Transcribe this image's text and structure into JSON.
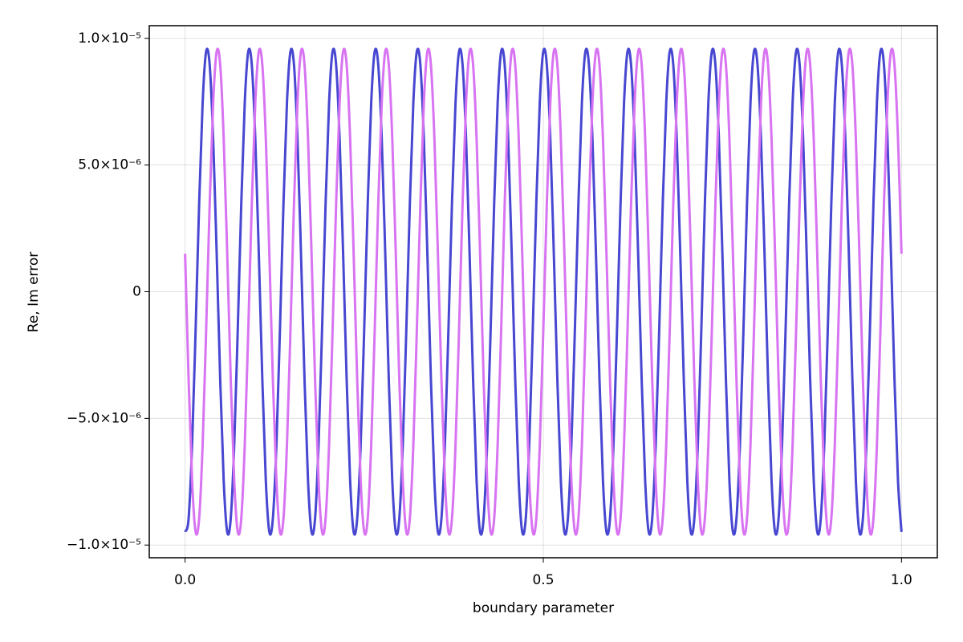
{
  "chart_data": {
    "type": "line",
    "x_label": "boundary parameter",
    "y_label": "Re, Im error",
    "xlim": [
      -0.05,
      1.05
    ],
    "ylim": [
      -1.05e-05,
      1.05e-05
    ],
    "xticks": [
      {
        "value": 0,
        "label": "0.0"
      },
      0.5,
      {
        "value": 1,
        "label": "1.0"
      }
    ],
    "yticks": [
      {
        "value": -1e-05,
        "label": "−1.0×10⁻⁵"
      },
      {
        "value": -5e-06,
        "label": "−5.0×10⁻⁶"
      },
      0,
      {
        "value": 5e-06,
        "label": "5.0×10⁻⁶"
      },
      {
        "value": 1e-05,
        "label": "1.0×10⁻⁵"
      }
    ],
    "grid": true,
    "x": [
      0,
      0.0049,
      0.0098,
      0.0147,
      0.0196,
      0.0245,
      0.0294,
      0.0343,
      0.0392,
      0.0441,
      0.049,
      0.0539,
      0.0588,
      0.0637,
      0.0686,
      0.0735,
      0.0784,
      0.0833,
      0.0882,
      0.0931,
      0.098,
      0.1029,
      0.1078,
      0.1127,
      0.1176,
      0.1225,
      0.1275,
      0.1324,
      0.1373,
      0.1422,
      0.1471,
      0.152,
      0.1569,
      0.1618,
      0.1667,
      0.1716,
      0.1765,
      0.1814,
      0.1863,
      0.1912,
      0.1961,
      0.201,
      0.2059,
      0.2108,
      0.2157,
      0.2206,
      0.2255,
      0.2304,
      0.2353,
      0.2402,
      0.2451,
      0.25,
      0.2549,
      0.2598,
      0.2647,
      0.2696,
      0.2745,
      0.2794,
      0.2843,
      0.2892,
      0.2941,
      0.299,
      0.3039,
      0.3088,
      0.3137,
      0.3186,
      0.3235,
      0.3284,
      0.3333,
      0.3382,
      0.3431,
      0.348,
      0.3529,
      0.3578,
      0.3627,
      0.3676,
      0.3725,
      0.3775,
      0.3824,
      0.3873,
      0.3922,
      0.3971,
      0.402,
      0.4069,
      0.4118,
      0.4167,
      0.4216,
      0.4265,
      0.4314,
      0.4363,
      0.4412,
      0.4461,
      0.451,
      0.4559,
      0.4608,
      0.4657,
      0.4706,
      0.4755,
      0.4804,
      0.4853,
      0.4902,
      0.4951,
      0.5,
      0.5049,
      0.5098,
      0.5147,
      0.5196,
      0.5245,
      0.5294,
      0.5343,
      0.5392,
      0.5441,
      0.549,
      0.5539,
      0.5588,
      0.5637,
      0.5686,
      0.5735,
      0.5784,
      0.5833,
      0.5882,
      0.5931,
      0.598,
      0.6029,
      0.6078,
      0.6127,
      0.6176,
      0.6225,
      0.6275,
      0.6324,
      0.6373,
      0.6422,
      0.6471,
      0.652,
      0.6569,
      0.6618,
      0.6667,
      0.6716,
      0.6765,
      0.6814,
      0.6863,
      0.6912,
      0.6961,
      0.701,
      0.7059,
      0.7108,
      0.7157,
      0.7206,
      0.7255,
      0.7304,
      0.7353,
      0.7402,
      0.7451,
      0.75,
      0.7549,
      0.7598,
      0.7647,
      0.7696,
      0.7745,
      0.7794,
      0.7843,
      0.7892,
      0.7941,
      0.799,
      0.8039,
      0.8088,
      0.8137,
      0.8186,
      0.8235,
      0.8284,
      0.8333,
      0.8382,
      0.8431,
      0.848,
      0.8529,
      0.8578,
      0.8627,
      0.8676,
      0.8725,
      0.8775,
      0.8824,
      0.8873,
      0.8922,
      0.8971,
      0.902,
      0.9069,
      0.9118,
      0.9167,
      0.9216,
      0.9265,
      0.9314,
      0.9363,
      0.9412,
      0.9461,
      0.951,
      0.9559,
      0.9608,
      0.9657,
      0.9706,
      0.9755,
      0.9804,
      0.9853,
      0.9902,
      0.9951,
      1
    ],
    "series": [
      {
        "color": "#4747d1",
        "values": [
          -9.48e-06,
          -8.96e-06,
          -6.04e-06,
          -1.5e-06,
          3.44e-06,
          7.46e-06,
          9.48e-06,
          8.96e-06,
          6.04e-06,
          1.5e-06,
          -3.44e-06,
          -7.46e-06,
          -9.48e-06,
          -8.96e-06,
          -6.04e-06,
          -1.5e-06,
          3.44e-06,
          7.46e-06,
          9.48e-06,
          8.96e-06,
          6.04e-06,
          1.5e-06,
          -3.44e-06,
          -7.46e-06,
          -9.48e-06,
          -8.96e-06,
          -6.04e-06,
          -1.5e-06,
          3.44e-06,
          7.46e-06,
          9.48e-06,
          8.96e-06,
          6.04e-06,
          1.5e-06,
          -3.44e-06,
          -7.46e-06,
          -9.48e-06,
          -8.96e-06,
          -6.04e-06,
          -1.5e-06,
          3.44e-06,
          7.46e-06,
          9.48e-06,
          8.96e-06,
          6.04e-06,
          1.5e-06,
          -3.44e-06,
          -7.46e-06,
          -9.48e-06,
          -8.96e-06,
          -6.04e-06,
          -1.5e-06,
          3.44e-06,
          7.46e-06,
          9.48e-06,
          8.96e-06,
          6.04e-06,
          1.5e-06,
          -3.44e-06,
          -7.46e-06,
          -9.48e-06,
          -8.96e-06,
          -6.04e-06,
          -1.5e-06,
          3.44e-06,
          7.46e-06,
          9.48e-06,
          8.96e-06,
          6.04e-06,
          1.5e-06,
          -3.44e-06,
          -7.46e-06,
          -9.48e-06,
          -8.96e-06,
          -6.04e-06,
          -1.5e-06,
          3.44e-06,
          7.46e-06,
          9.48e-06,
          8.96e-06,
          6.04e-06,
          1.5e-06,
          -3.44e-06,
          -7.46e-06,
          -9.48e-06,
          -8.96e-06,
          -6.04e-06,
          -1.5e-06,
          3.44e-06,
          7.46e-06,
          9.48e-06,
          8.96e-06,
          6.04e-06,
          1.5e-06,
          -3.44e-06,
          -7.46e-06,
          -9.48e-06,
          -8.96e-06,
          -6.04e-06,
          -1.5e-06,
          3.44e-06,
          7.46e-06,
          9.48e-06,
          8.96e-06,
          6.04e-06,
          1.5e-06,
          -3.44e-06,
          -7.46e-06,
          -9.48e-06,
          -8.96e-06,
          -6.04e-06,
          -1.5e-06,
          3.44e-06,
          7.46e-06,
          9.48e-06,
          8.96e-06,
          6.04e-06,
          1.5e-06,
          -3.44e-06,
          -7.46e-06,
          -9.48e-06,
          -8.96e-06,
          -6.04e-06,
          -1.5e-06,
          3.44e-06,
          7.46e-06,
          9.48e-06,
          8.96e-06,
          6.04e-06,
          1.5e-06,
          -3.44e-06,
          -7.46e-06,
          -9.48e-06,
          -8.96e-06,
          -6.04e-06,
          -1.5e-06,
          3.44e-06,
          7.46e-06,
          9.48e-06,
          8.96e-06,
          6.04e-06,
          1.5e-06,
          -3.44e-06,
          -7.46e-06,
          -9.48e-06,
          -8.96e-06,
          -6.04e-06,
          -1.5e-06,
          3.44e-06,
          7.46e-06,
          9.48e-06,
          8.96e-06,
          6.04e-06,
          1.5e-06,
          -3.44e-06,
          -7.46e-06,
          -9.48e-06,
          -8.96e-06,
          -6.04e-06,
          -1.5e-06,
          3.44e-06,
          7.46e-06,
          9.48e-06,
          8.96e-06,
          6.04e-06,
          1.5e-06,
          -3.44e-06,
          -7.46e-06,
          -9.48e-06,
          -8.96e-06,
          -6.04e-06,
          -1.5e-06,
          3.44e-06,
          7.46e-06,
          9.48e-06,
          8.96e-06,
          6.04e-06,
          1.5e-06,
          -3.44e-06,
          -7.46e-06,
          -9.48e-06,
          -8.96e-06,
          -6.04e-06,
          -1.5e-06,
          3.44e-06,
          7.46e-06,
          9.48e-06,
          8.96e-06,
          6.04e-06,
          1.5e-06,
          -3.44e-06,
          -7.46e-06,
          -9.48e-06,
          -8.96e-06,
          -6.04e-06,
          -1.5e-06,
          3.44e-06,
          7.46e-06,
          9.48e-06,
          8.96e-06,
          6.04e-06,
          1.5e-06,
          -3.44e-06,
          -7.46e-06,
          -9.48e-06
        ]
      },
      {
        "color": "#d874f2",
        "values": [
          1.5e-06,
          -3.44e-06,
          -7.46e-06,
          -9.48e-06,
          -8.96e-06,
          -6.04e-06,
          -1.5e-06,
          3.44e-06,
          7.46e-06,
          9.48e-06,
          8.96e-06,
          6.04e-06,
          1.5e-06,
          -3.44e-06,
          -7.46e-06,
          -9.48e-06,
          -8.96e-06,
          -6.04e-06,
          -1.5e-06,
          3.44e-06,
          7.46e-06,
          9.48e-06,
          8.96e-06,
          6.04e-06,
          1.5e-06,
          -3.44e-06,
          -7.46e-06,
          -9.48e-06,
          -8.96e-06,
          -6.04e-06,
          -1.5e-06,
          3.44e-06,
          7.46e-06,
          9.48e-06,
          8.96e-06,
          6.04e-06,
          1.5e-06,
          -3.44e-06,
          -7.46e-06,
          -9.48e-06,
          -8.96e-06,
          -6.04e-06,
          -1.5e-06,
          3.44e-06,
          7.46e-06,
          9.48e-06,
          8.96e-06,
          6.04e-06,
          1.5e-06,
          -3.44e-06,
          -7.46e-06,
          -9.48e-06,
          -8.96e-06,
          -6.04e-06,
          -1.5e-06,
          3.44e-06,
          7.46e-06,
          9.48e-06,
          8.96e-06,
          6.04e-06,
          1.5e-06,
          -3.44e-06,
          -7.46e-06,
          -9.48e-06,
          -8.96e-06,
          -6.04e-06,
          -1.5e-06,
          3.44e-06,
          7.46e-06,
          9.48e-06,
          8.96e-06,
          6.04e-06,
          1.5e-06,
          -3.44e-06,
          -7.46e-06,
          -9.48e-06,
          -8.96e-06,
          -6.04e-06,
          -1.5e-06,
          3.44e-06,
          7.46e-06,
          9.48e-06,
          8.96e-06,
          6.04e-06,
          1.5e-06,
          -3.44e-06,
          -7.46e-06,
          -9.48e-06,
          -8.96e-06,
          -6.04e-06,
          -1.5e-06,
          3.44e-06,
          7.46e-06,
          9.48e-06,
          8.96e-06,
          6.04e-06,
          1.5e-06,
          -3.44e-06,
          -7.46e-06,
          -9.48e-06,
          -8.96e-06,
          -6.04e-06,
          -1.5e-06,
          3.44e-06,
          7.46e-06,
          9.48e-06,
          8.96e-06,
          6.04e-06,
          1.5e-06,
          -3.44e-06,
          -7.46e-06,
          -9.48e-06,
          -8.96e-06,
          -6.04e-06,
          -1.5e-06,
          3.44e-06,
          7.46e-06,
          9.48e-06,
          8.96e-06,
          6.04e-06,
          1.5e-06,
          -3.44e-06,
          -7.46e-06,
          -9.48e-06,
          -8.96e-06,
          -6.04e-06,
          -1.5e-06,
          3.44e-06,
          7.46e-06,
          9.48e-06,
          8.96e-06,
          6.04e-06,
          1.5e-06,
          -3.44e-06,
          -7.46e-06,
          -9.48e-06,
          -8.96e-06,
          -6.04e-06,
          -1.5e-06,
          3.44e-06,
          7.46e-06,
          9.48e-06,
          8.96e-06,
          6.04e-06,
          1.5e-06,
          -3.44e-06,
          -7.46e-06,
          -9.48e-06,
          -8.96e-06,
          -6.04e-06,
          -1.5e-06,
          3.44e-06,
          7.46e-06,
          9.48e-06,
          8.96e-06,
          6.04e-06,
          1.5e-06,
          -3.44e-06,
          -7.46e-06,
          -9.48e-06,
          -8.96e-06,
          -6.04e-06,
          -1.5e-06,
          3.44e-06,
          7.46e-06,
          9.48e-06,
          8.96e-06,
          6.04e-06,
          1.5e-06,
          -3.44e-06,
          -7.46e-06,
          -9.48e-06,
          -8.96e-06,
          -6.04e-06,
          -1.5e-06,
          3.44e-06,
          7.46e-06,
          9.48e-06,
          8.96e-06,
          6.04e-06,
          1.5e-06,
          -3.44e-06,
          -7.46e-06,
          -9.48e-06,
          -8.96e-06,
          -6.04e-06,
          -1.5e-06,
          3.44e-06,
          7.46e-06,
          9.48e-06,
          8.96e-06,
          6.04e-06,
          1.5e-06,
          -3.44e-06,
          -7.46e-06,
          -9.48e-06,
          -8.96e-06,
          -6.04e-06,
          -1.5e-06,
          3.44e-06,
          7.46e-06,
          9.48e-06,
          8.96e-06,
          6.04e-06,
          1.5e-06
        ]
      }
    ]
  }
}
